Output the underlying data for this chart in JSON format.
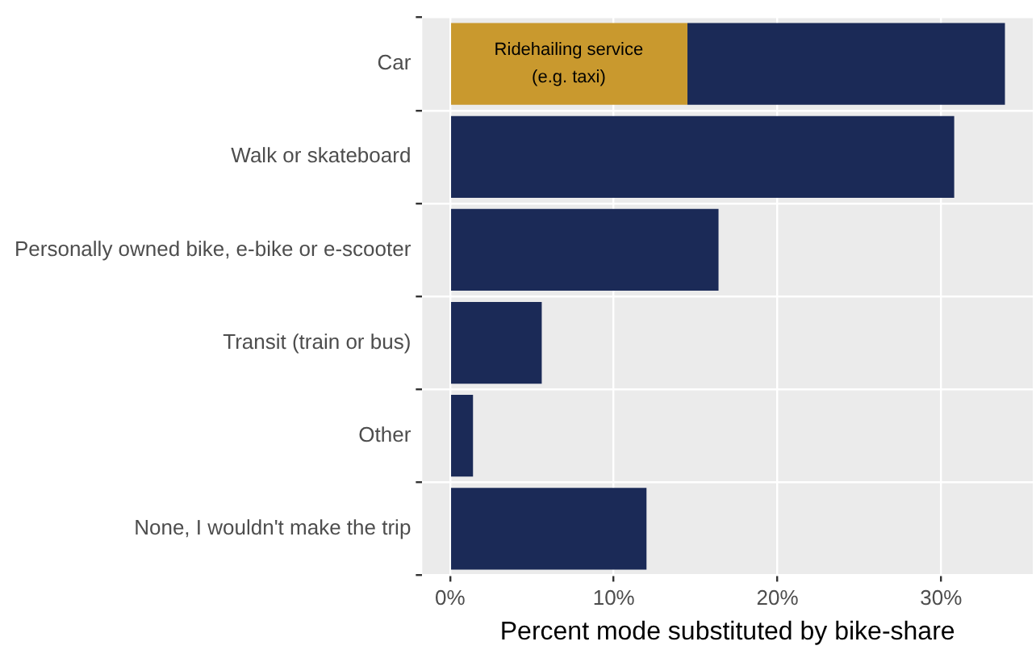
{
  "chart_data": {
    "type": "bar",
    "orientation": "horizontal",
    "stacked": true,
    "xlabel": "Percent mode substituted by bike-share",
    "categories": [
      "Car",
      "Walk or skateboard",
      "Personally owned bike, e-bike or e-scooter",
      "Transit (train or bus)",
      "Other",
      "None, I wouldn't make the trip"
    ],
    "series": [
      {
        "color": "#c9992e",
        "values": [
          14.5,
          null,
          null,
          null,
          null,
          null
        ]
      },
      {
        "color": "#1b2a57",
        "values": [
          19.4,
          30.8,
          16.4,
          5.6,
          1.4,
          12.0
        ]
      }
    ],
    "xlim": [
      -1.7,
      35.6
    ],
    "xticks": [
      {
        "value": 0,
        "label": "0%"
      },
      {
        "value": 10,
        "label": "10%"
      },
      {
        "value": 20,
        "label": "20%"
      },
      {
        "value": 30,
        "label": "30%"
      }
    ],
    "grid": true,
    "legend": false,
    "annotations": [
      {
        "text": "Ridehailing service\n(e.g. taxi)",
        "x": 7.25,
        "y": "Car"
      }
    ]
  }
}
